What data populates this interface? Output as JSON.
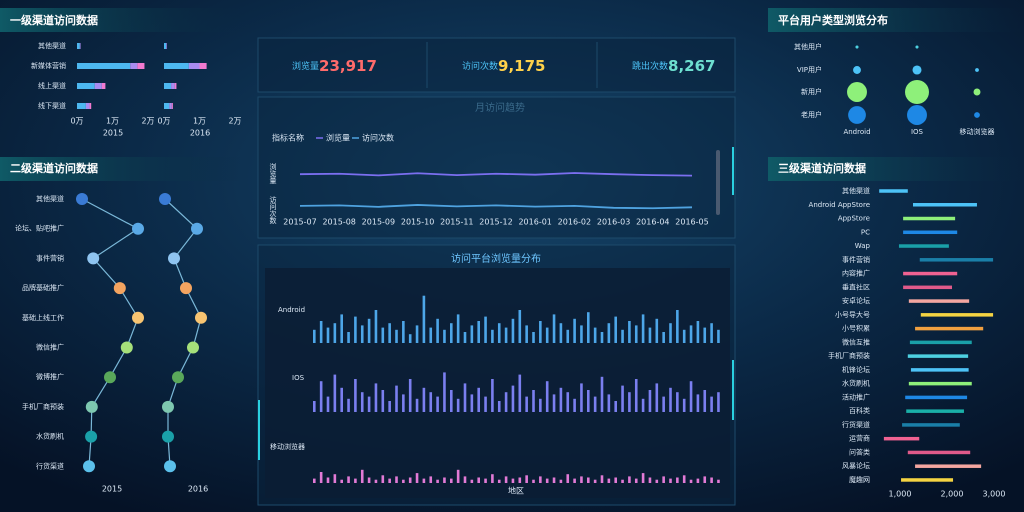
{
  "kpis": [
    {
      "label": "浏览量",
      "value": "23,917"
    },
    {
      "label": "访问次数",
      "value": "9,175"
    },
    {
      "label": "跳出次数",
      "value": "8,267"
    }
  ],
  "chart_data": [
    {
      "type": "stacked-hbar",
      "title": "一级渠道访问数据",
      "categories": [
        "其他渠道",
        "新媒体营销",
        "线上渠道",
        "线下渠道"
      ],
      "xlim": [
        0,
        20000
      ],
      "xticks": [
        {
          "value": 0,
          "label": "0万"
        },
        {
          "value": 10000,
          "label": "1万"
        },
        {
          "value": 20000,
          "label": "2万"
        }
      ],
      "panels": [
        {
          "label": "2015",
          "series": [
            {
              "color": "#4db8f0",
              "values": [
                800,
                15000,
                5000,
                2500
              ]
            },
            {
              "color": "#a98cf0",
              "values": [
                200,
                2000,
                2000,
                1000
              ]
            },
            {
              "color": "#f27ad0",
              "values": [
                0,
                2000,
                1000,
                500
              ]
            }
          ]
        },
        {
          "label": "2016",
          "series": [
            {
              "color": "#4db8f0",
              "values": [
                600,
                7000,
                2000,
                1500
              ]
            },
            {
              "color": "#a98cf0",
              "values": [
                200,
                3000,
                1000,
                700
              ]
            },
            {
              "color": "#f27ad0",
              "values": [
                0,
                2000,
                500,
                300
              ]
            }
          ]
        }
      ]
    },
    {
      "type": "dot-line",
      "title": "二级渠道访问数据",
      "categories": [
        "其他渠道",
        "论坛、贴吧推广",
        "事件营销",
        "品牌基础推广",
        "基础上线工作",
        "微信推广",
        "微博推广",
        "手机厂商预装",
        "水货刷机",
        "行货渠道"
      ],
      "colors": [
        "#3a7bd5",
        "#5aa9e6",
        "#8fc4f0",
        "#f4a460",
        "#f8c471",
        "#a6e07a",
        "#5aa85a",
        "#7ec8b0",
        "#1aa0a8",
        "#5bc0eb"
      ],
      "xlim": [
        0,
        100
      ],
      "panels": [
        {
          "label": "2015",
          "values": [
            10,
            90,
            26,
            64,
            90,
            74,
            50,
            24,
            23,
            20
          ]
        },
        {
          "label": "2016",
          "values": [
            14,
            78,
            32,
            56,
            86,
            70,
            40,
            20,
            20,
            24
          ]
        }
      ]
    },
    {
      "type": "line",
      "title": "月访问趋势",
      "legend_title": "指标名称",
      "categories": [
        "2015-07",
        "2015-08",
        "2015-09",
        "2015-10",
        "2015-11",
        "2015-12",
        "2016-01",
        "2016-02",
        "2016-03",
        "2016-04",
        "2016-05"
      ],
      "ylim": [
        0,
        2500
      ],
      "series": [
        {
          "name": "浏览量",
          "color": "#7b6ff0",
          "values": [
            1700,
            1720,
            1650,
            1740,
            1660,
            1720,
            1680,
            1750,
            1700,
            1660,
            1640
          ]
        },
        {
          "name": "访问次数",
          "color": "#4fa3e0",
          "values": [
            380,
            400,
            340,
            420,
            360,
            400,
            350,
            380,
            300,
            280,
            320
          ]
        }
      ]
    },
    {
      "type": "bar-rows",
      "title": "访问平台浏览量分布",
      "xlabel": "地区",
      "ylim": [
        0,
        50
      ],
      "series": [
        {
          "name": "Android",
          "color": "#4da6e8",
          "values": [
            12,
            20,
            14,
            18,
            26,
            10,
            24,
            16,
            22,
            30,
            14,
            18,
            12,
            20,
            8,
            16,
            43,
            14,
            22,
            12,
            18,
            26,
            10,
            16,
            20,
            24,
            12,
            18,
            14,
            22,
            30,
            16,
            10,
            20,
            14,
            26,
            18,
            12,
            22,
            16,
            28,
            14,
            10,
            18,
            24,
            12,
            20,
            16,
            26,
            14,
            22,
            10,
            18,
            30,
            12,
            16,
            20,
            14,
            18,
            12
          ]
        },
        {
          "name": "IOS",
          "color": "#7b7ff0",
          "values": [
            10,
            28,
            14,
            34,
            22,
            12,
            30,
            18,
            14,
            26,
            20,
            10,
            24,
            16,
            30,
            12,
            22,
            18,
            14,
            36,
            20,
            12,
            26,
            16,
            22,
            14,
            30,
            10,
            18,
            24,
            34,
            14,
            20,
            12,
            28,
            16,
            22,
            18,
            12,
            26,
            20,
            14,
            32,
            16,
            10,
            24,
            18,
            30,
            12,
            20,
            26,
            14,
            22,
            18,
            12,
            28,
            16,
            20,
            14,
            18
          ]
        },
        {
          "name": "移动浏览器",
          "color": "#e27ad6",
          "values": [
            4,
            10,
            5,
            8,
            3,
            6,
            4,
            12,
            5,
            3,
            7,
            4,
            6,
            3,
            5,
            9,
            4,
            6,
            3,
            5,
            4,
            12,
            6,
            3,
            5,
            4,
            8,
            3,
            6,
            4,
            5,
            7,
            3,
            6,
            4,
            5,
            3,
            8,
            4,
            6,
            5,
            3,
            7,
            4,
            5,
            3,
            6,
            4,
            9,
            5,
            3,
            6,
            4,
            5,
            7,
            3,
            4,
            6,
            5,
            3
          ]
        }
      ]
    },
    {
      "type": "bubble-grid",
      "title": "平台用户类型浏览分布",
      "rows": [
        "其他用户",
        "VIP用户",
        "新用户",
        "老用户"
      ],
      "columns": [
        "Android",
        "IOS",
        "移动浏览器"
      ],
      "row_colors": [
        "#4dd0e1",
        "#4dc3f7",
        "#8ef07a",
        "#1e88e5"
      ],
      "values": [
        [
          0.2,
          0.2,
          0
        ],
        [
          1.3,
          1.7,
          0.3
        ],
        [
          8.3,
          12,
          1
        ],
        [
          6.6,
          8.3,
          0.7
        ]
      ]
    },
    {
      "type": "range-bar",
      "title": "三级渠道访问数据",
      "categories": [
        "其他渠道",
        "Android AppStore",
        "AppStore",
        "PC",
        "Wap",
        "事件营销",
        "内容推广",
        "垂直社区",
        "安卓论坛",
        "小号导大号",
        "小号积累",
        "微信互推",
        "手机厂商预装",
        "机锋论坛",
        "水货刷机",
        "活动推广",
        "百科类",
        "行货渠道",
        "运营商",
        "问答类",
        "风暴论坛",
        "魔趣网"
      ],
      "colors": [
        "#4dc3f7",
        "#4dc3f7",
        "#8ef07a",
        "#1e88e5",
        "#1aa0a8",
        "#1a7fa8",
        "#f06292",
        "#e05a8a",
        "#f4a6a0",
        "#f5d442",
        "#f0a040",
        "#1aa0a8",
        "#4dd0e1",
        "#4dc3f7",
        "#8ef07a",
        "#1e88e5",
        "#1ab0a8",
        "#1a7fa8",
        "#f06292",
        "#e05a8a",
        "#f4a6a0",
        "#f5d442"
      ],
      "values": [
        [
          600,
          1150
        ],
        [
          1250,
          2480
        ],
        [
          1060,
          2060
        ],
        [
          1060,
          2100
        ],
        [
          980,
          1940
        ],
        [
          1380,
          2790
        ],
        [
          1060,
          2100
        ],
        [
          1060,
          2000
        ],
        [
          1170,
          2330
        ],
        [
          1400,
          2790
        ],
        [
          1290,
          2600
        ],
        [
          1190,
          2380
        ],
        [
          1150,
          2310
        ],
        [
          1210,
          2320
        ],
        [
          1170,
          2380
        ],
        [
          1100,
          2290
        ],
        [
          1120,
          2230
        ],
        [
          1040,
          2150
        ],
        [
          690,
          1370
        ],
        [
          1150,
          2350
        ],
        [
          1290,
          2560
        ],
        [
          1020,
          2020
        ]
      ],
      "xlim": [
        500,
        3000
      ],
      "xticks": [
        {
          "value": 1000,
          "label": "1,000"
        },
        {
          "value": 2000,
          "label": "2,000"
        },
        {
          "value": 3000,
          "label": "3,000"
        }
      ]
    }
  ]
}
